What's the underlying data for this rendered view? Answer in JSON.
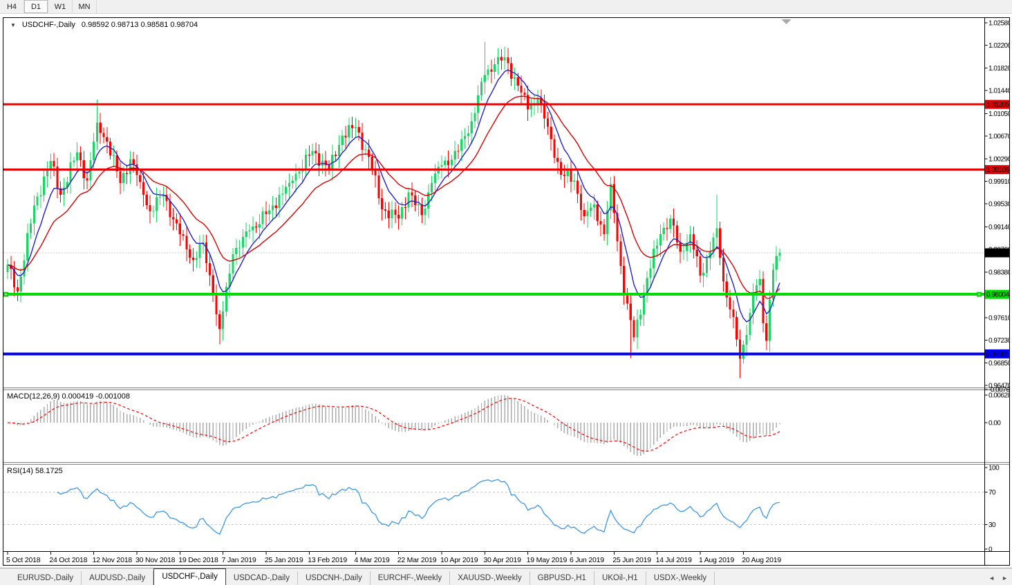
{
  "toolbar": {
    "buttons": [
      {
        "label": "H4",
        "active": false
      },
      {
        "label": "D1",
        "active": true
      },
      {
        "label": "W1",
        "active": false
      },
      {
        "label": "MN",
        "active": false
      }
    ]
  },
  "chart_header": {
    "collapse_arrow": "▼",
    "symbol_title": "USDCHF-,Daily",
    "ohlc": "0.98592 0.98713 0.98581 0.98704"
  },
  "indicators": {
    "macd_label": "MACD(12,26,9) 0.000419 -0.001008",
    "rsi_label": "RSI(14) 58.1725"
  },
  "tabs": {
    "items": [
      {
        "label": "EURUSD-,Daily"
      },
      {
        "label": "AUDUSD-,Daily"
      },
      {
        "label": "USDCHF-,Daily"
      },
      {
        "label": "USDCAD-,Daily"
      },
      {
        "label": "USDCNH-,Daily"
      },
      {
        "label": "EURCHF-,Weekly"
      },
      {
        "label": "XAUUSD-,Weekly"
      },
      {
        "label": "GBPUSD-,H1"
      },
      {
        "label": "UKOil-,H1"
      },
      {
        "label": "USDX-,Weekly"
      }
    ],
    "active_index": 2,
    "nav_left": "◄",
    "nav_right": "►"
  },
  "chart_data": {
    "type": "candlestick",
    "symbol": "USDCHF-",
    "timeframe": "Daily",
    "ohlc_display": {
      "open": "0.98592",
      "high": "0.98713",
      "low": "0.98581",
      "close": "0.98704"
    },
    "candle_up_color": "#1ED467",
    "candle_down_color": "#FF0000",
    "ma_fast": {
      "period": 8,
      "color": "#2020C4"
    },
    "ma_slow": {
      "period": 21,
      "color": "#D40000"
    },
    "current_price": 0.98704,
    "current_price_line_color": "#C8C8C8",
    "y_axis": {
      "price_top": 1.0258,
      "price_bottom": 0.9647,
      "ticks": [
        [
          "1.02580",
          1.0258
        ],
        [
          "1.02200",
          1.022
        ],
        [
          "1.01820",
          1.0182
        ],
        [
          "1.01440",
          1.0144
        ],
        [
          "1.01050",
          1.0105
        ],
        [
          "1.00670",
          1.0067
        ],
        [
          "1.00290",
          1.0029
        ],
        [
          "0.99910",
          0.9991
        ],
        [
          "0.99530",
          0.9953
        ],
        [
          "0.99140",
          0.9914
        ],
        [
          "0.98760",
          0.9876
        ],
        [
          "0.98380",
          0.9838
        ],
        [
          "0.97610",
          0.9761
        ],
        [
          "0.97230",
          0.9723
        ],
        [
          "0.96850",
          0.9685
        ],
        [
          "0.96470",
          0.9647
        ]
      ]
    },
    "x_axis": {
      "bar_count": 234,
      "labels": [
        "5 Oct 2018",
        "24 Oct 2018",
        "12 Nov 2018",
        "30 Nov 2018",
        "19 Dec 2018",
        "7 Jan 2019",
        "25 Jan 2019",
        "13 Feb 2019",
        "4 Mar 2019",
        "22 Mar 2019",
        "10 Apr 2019",
        "30 Apr 2019",
        "19 May 2019",
        "6 Jun 2019",
        "25 Jun 2019",
        "14 Jul 2019",
        "1 Aug 2019",
        "20 Aug 2019"
      ],
      "label_bar_indices": [
        0,
        13,
        26,
        39,
        52,
        65,
        78,
        91,
        105,
        118,
        131,
        144,
        157,
        170,
        183,
        196,
        209,
        222
      ]
    },
    "horizontal_lines": [
      {
        "name": "resistance-upper",
        "price": 1.01205,
        "color": "#E80000",
        "width": 3,
        "handles": false
      },
      {
        "name": "resistance-lower",
        "price": 1.00106,
        "color": "#E80000",
        "width": 3,
        "handles": false
      },
      {
        "name": "support-green",
        "price": 0.98004,
        "color": "#00DC00",
        "width": 4,
        "handles": true
      },
      {
        "name": "support-blue",
        "price": 0.97001,
        "color": "#0000F0",
        "width": 4,
        "handles": false
      }
    ],
    "price_labels": [
      {
        "name": "resistance-upper-label",
        "text": "1.01205",
        "price": 1.01205,
        "bg": "#E80000",
        "fg": "#FFFFFF"
      },
      {
        "name": "resistance-lower-label",
        "text": "1.00106",
        "price": 1.00106,
        "bg": "#E80000",
        "fg": "#FFFFFF"
      },
      {
        "name": "current-price-label",
        "text": "0.98704",
        "price": 0.98704,
        "bg": "#000000",
        "fg": "#FFFFFF"
      },
      {
        "name": "support-green-label",
        "text": "0.98004",
        "price": 0.98004,
        "bg": "#00DC00",
        "fg": "#000000"
      },
      {
        "name": "support-blue-label",
        "text": "0.97001",
        "price": 0.97001,
        "bg": "#0000F0",
        "fg": "#FFFFFF"
      }
    ],
    "price_path_anchors": [
      [
        0,
        0.985
      ],
      [
        3,
        0.9805
      ],
      [
        8,
        0.995
      ],
      [
        13,
        1.0025
      ],
      [
        16,
        0.9968
      ],
      [
        21,
        1.004
      ],
      [
        24,
        0.9992
      ],
      [
        27,
        1.009
      ],
      [
        30,
        1.0058
      ],
      [
        34,
        0.9988
      ],
      [
        37,
        1.0028
      ],
      [
        40,
        0.999
      ],
      [
        43,
        0.994
      ],
      [
        47,
        0.9968
      ],
      [
        52,
        0.9902
      ],
      [
        56,
        0.9858
      ],
      [
        59,
        0.9888
      ],
      [
        62,
        0.98
      ],
      [
        64,
        0.9742
      ],
      [
        68,
        0.9868
      ],
      [
        73,
        0.9908
      ],
      [
        79,
        0.9942
      ],
      [
        85,
        0.9988
      ],
      [
        92,
        1.0042
      ],
      [
        97,
        1.0012
      ],
      [
        101,
        1.0068
      ],
      [
        105,
        1.0082
      ],
      [
        109,
        1.0032
      ],
      [
        113,
        0.9944
      ],
      [
        118,
        0.9928
      ],
      [
        121,
        0.9972
      ],
      [
        125,
        0.9934
      ],
      [
        128,
        0.9988
      ],
      [
        131,
        1.0018
      ],
      [
        136,
        1.0042
      ],
      [
        140,
        1.0092
      ],
      [
        144,
        1.017
      ],
      [
        147,
        1.0188
      ],
      [
        150,
        1.02
      ],
      [
        154,
        1.0152
      ],
      [
        157,
        1.0112
      ],
      [
        160,
        1.0132
      ],
      [
        164,
        1.0062
      ],
      [
        167,
        1.0002
      ],
      [
        171,
        0.9992
      ],
      [
        174,
        0.9932
      ],
      [
        177,
        0.9952
      ],
      [
        180,
        0.9902
      ],
      [
        182,
        0.9986
      ],
      [
        186,
        0.9802
      ],
      [
        189,
        0.9728
      ],
      [
        193,
        0.9828
      ],
      [
        197,
        0.9902
      ],
      [
        200,
        0.9928
      ],
      [
        203,
        0.9872
      ],
      [
        206,
        0.9902
      ],
      [
        209,
        0.9832
      ],
      [
        212,
        0.9872
      ],
      [
        214,
        0.9912
      ],
      [
        216,
        0.9822
      ],
      [
        219,
        0.9762
      ],
      [
        221,
        0.9692
      ],
      [
        223,
        0.9732
      ],
      [
        225,
        0.9802
      ],
      [
        227,
        0.9826
      ],
      [
        228,
        0.9752
      ],
      [
        229,
        0.9722
      ],
      [
        230,
        0.9792
      ],
      [
        231,
        0.9842
      ],
      [
        233,
        0.98704
      ]
    ],
    "wick_overrides": {
      "27": {
        "high": 1.0129
      },
      "64": {
        "low": 0.9716
      },
      "105": {
        "high": 1.0098
      },
      "144": {
        "high": 1.0226
      },
      "150": {
        "high": 1.0218
      },
      "188": {
        "low": 0.9693
      },
      "214": {
        "high": 0.9968
      },
      "221": {
        "low": 0.9659
      }
    },
    "shift_marker": {
      "bar": 235,
      "color": "#A8A8A8"
    },
    "macd": {
      "params": [
        12,
        26,
        9
      ],
      "main_value": 0.000419,
      "signal_value": -0.001008,
      "hist_color": "#ABABAB",
      "signal_color": "#FF0000",
      "axis": [
        [
          "0.006286",
          0.006286
        ],
        [
          "0.00",
          0
        ],
        [
          "-0.00762",
          -0.00762
        ]
      ]
    },
    "rsi": {
      "period": 14,
      "value": 58.1725,
      "color": "#3B96E8",
      "level_line_color": "#C8C8C8",
      "axis": [
        [
          "100",
          100
        ],
        [
          "70",
          70
        ],
        [
          "30",
          30
        ],
        [
          "0",
          0
        ]
      ],
      "dashed_levels": [
        70,
        30
      ]
    }
  }
}
